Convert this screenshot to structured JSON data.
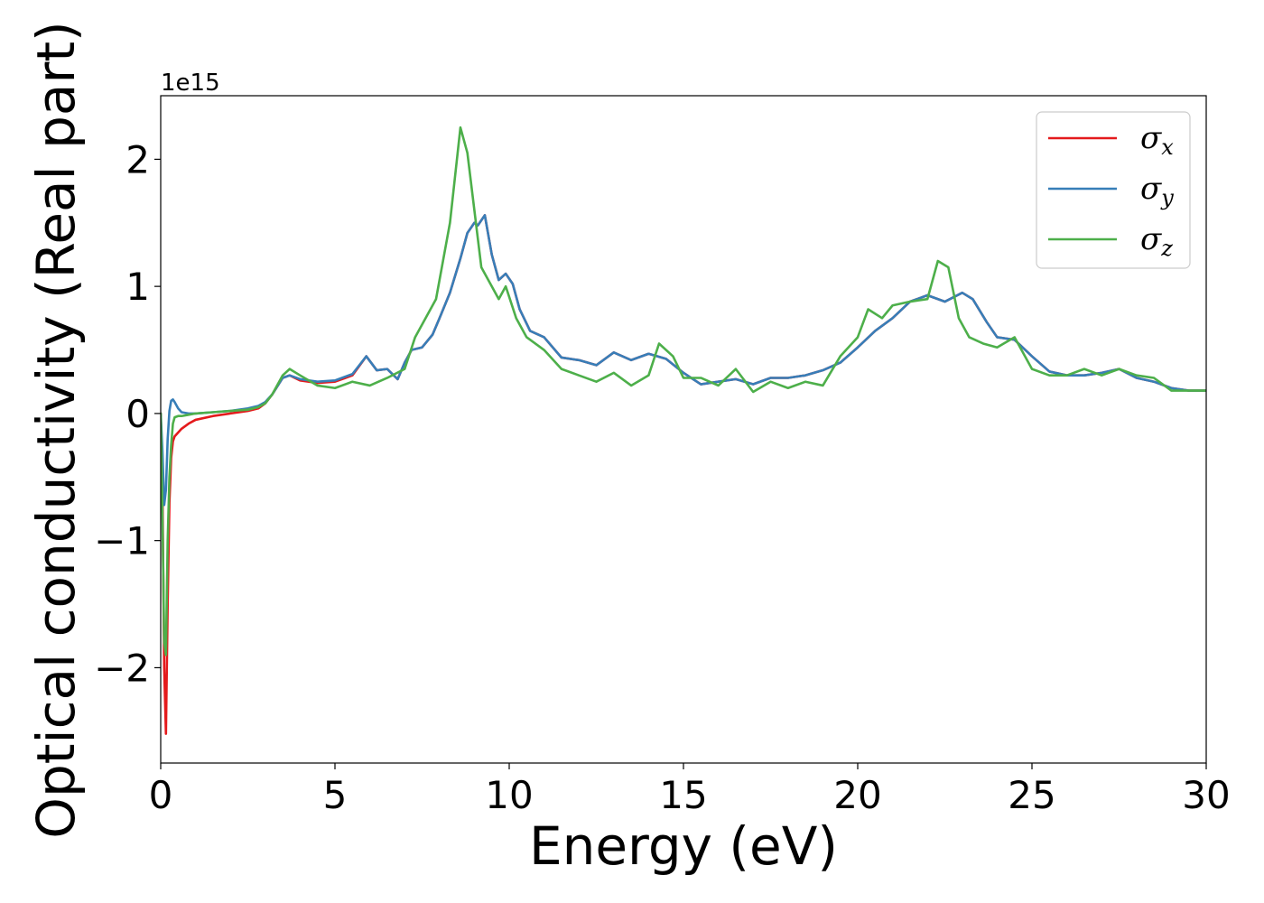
{
  "chart_data": {
    "type": "line",
    "title": "",
    "xlabel": "Energy (eV)",
    "ylabel": "Optical conductivity (Real part)",
    "y_offset_label": "1e15",
    "xlim": [
      0,
      30
    ],
    "ylim": [
      -2.75,
      2.5
    ],
    "y_scale_factor": 1000000000000000.0,
    "x_ticks": [
      0,
      5,
      10,
      15,
      20,
      25,
      30
    ],
    "x_tick_labels": [
      "0",
      "5",
      "10",
      "15",
      "20",
      "25",
      "30"
    ],
    "y_ticks": [
      -2,
      -1,
      0,
      1,
      2
    ],
    "y_tick_labels": [
      "−2",
      "−1",
      "0",
      "1",
      "2"
    ],
    "grid": false,
    "legend_position": "top-right",
    "colors": {
      "sigma_x": "#e41a1c",
      "sigma_y": "#377eb8",
      "sigma_z": "#4daf4a"
    },
    "legend": [
      {
        "symbol": "σ",
        "sub": "x",
        "key": "sigma_x"
      },
      {
        "symbol": "σ",
        "sub": "y",
        "key": "sigma_y"
      },
      {
        "symbol": "σ",
        "sub": "z",
        "key": "sigma_z"
      }
    ],
    "series": [
      {
        "key": "sigma_x",
        "x": [
          0.0,
          0.05,
          0.1,
          0.15,
          0.2,
          0.25,
          0.3,
          0.35,
          0.4,
          0.5,
          0.6,
          0.8,
          1.0,
          1.5,
          2.0,
          2.5,
          2.8,
          3.0,
          3.2,
          3.5,
          3.7,
          4.0,
          4.5,
          5.0,
          5.5,
          5.9,
          6.2,
          6.5,
          6.8,
          7.0,
          7.2,
          7.5,
          7.8,
          8.0,
          8.3,
          8.6,
          8.8,
          9.0,
          9.1,
          9.3,
          9.5,
          9.7,
          9.9,
          10.1,
          10.3,
          10.6,
          11.0,
          11.5,
          12.0,
          12.5,
          13.0,
          13.5,
          14.0,
          14.5,
          15.0,
          15.5,
          16.0,
          16.5,
          17.0,
          17.5,
          18.0,
          18.5,
          19.0,
          19.5,
          20.0,
          20.5,
          21.0,
          21.5,
          22.0,
          22.5,
          23.0,
          23.3,
          23.7,
          24.0,
          24.5,
          25.0,
          25.5,
          26.0,
          26.5,
          27.0,
          27.5,
          28.0,
          28.5,
          29.0,
          29.5,
          30.0
        ],
        "y": [
          0.0,
          -0.6,
          -2.0,
          -2.52,
          -1.5,
          -0.7,
          -0.35,
          -0.22,
          -0.18,
          -0.15,
          -0.12,
          -0.08,
          -0.05,
          -0.02,
          0.0,
          0.02,
          0.04,
          0.08,
          0.15,
          0.28,
          0.3,
          0.26,
          0.24,
          0.25,
          0.3,
          0.45,
          0.34,
          0.35,
          0.27,
          0.4,
          0.5,
          0.52,
          0.62,
          0.75,
          0.95,
          1.22,
          1.42,
          1.5,
          1.48,
          1.56,
          1.25,
          1.05,
          1.1,
          1.02,
          0.82,
          0.65,
          0.6,
          0.44,
          0.42,
          0.38,
          0.48,
          0.42,
          0.47,
          0.43,
          0.32,
          0.23,
          0.25,
          0.27,
          0.23,
          0.28,
          0.28,
          0.3,
          0.34,
          0.4,
          0.52,
          0.65,
          0.75,
          0.88,
          0.93,
          0.88,
          0.95,
          0.9,
          0.72,
          0.6,
          0.58,
          0.45,
          0.33,
          0.3,
          0.3,
          0.32,
          0.35,
          0.28,
          0.25,
          0.2,
          0.18,
          0.18
        ]
      },
      {
        "key": "sigma_y",
        "x": [
          0.0,
          0.05,
          0.1,
          0.15,
          0.2,
          0.25,
          0.3,
          0.35,
          0.4,
          0.5,
          0.6,
          0.8,
          1.0,
          1.5,
          2.0,
          2.5,
          2.8,
          3.0,
          3.2,
          3.5,
          3.7,
          4.0,
          4.5,
          5.0,
          5.5,
          5.9,
          6.2,
          6.5,
          6.8,
          7.0,
          7.2,
          7.5,
          7.8,
          8.0,
          8.3,
          8.6,
          8.8,
          9.0,
          9.1,
          9.3,
          9.5,
          9.7,
          9.9,
          10.1,
          10.3,
          10.6,
          11.0,
          11.5,
          12.0,
          12.5,
          13.0,
          13.5,
          14.0,
          14.5,
          15.0,
          15.5,
          16.0,
          16.5,
          17.0,
          17.5,
          18.0,
          18.5,
          19.0,
          19.5,
          20.0,
          20.5,
          21.0,
          21.5,
          22.0,
          22.5,
          23.0,
          23.3,
          23.7,
          24.0,
          24.5,
          25.0,
          25.5,
          26.0,
          26.5,
          27.0,
          27.5,
          28.0,
          28.5,
          29.0,
          29.5,
          30.0
        ],
        "y": [
          0.0,
          -0.3,
          -0.72,
          -0.6,
          -0.2,
          0.02,
          0.1,
          0.11,
          0.09,
          0.04,
          0.01,
          0.0,
          0.0,
          0.01,
          0.02,
          0.04,
          0.06,
          0.09,
          0.15,
          0.28,
          0.3,
          0.27,
          0.25,
          0.26,
          0.31,
          0.45,
          0.34,
          0.35,
          0.27,
          0.4,
          0.5,
          0.52,
          0.62,
          0.75,
          0.95,
          1.22,
          1.42,
          1.5,
          1.48,
          1.56,
          1.25,
          1.05,
          1.1,
          1.02,
          0.82,
          0.65,
          0.6,
          0.44,
          0.42,
          0.38,
          0.48,
          0.42,
          0.47,
          0.43,
          0.32,
          0.23,
          0.25,
          0.27,
          0.23,
          0.28,
          0.28,
          0.3,
          0.34,
          0.4,
          0.52,
          0.65,
          0.75,
          0.88,
          0.93,
          0.88,
          0.95,
          0.9,
          0.72,
          0.6,
          0.58,
          0.45,
          0.33,
          0.3,
          0.3,
          0.32,
          0.35,
          0.28,
          0.25,
          0.2,
          0.18,
          0.18
        ]
      },
      {
        "key": "sigma_z",
        "x": [
          0.0,
          0.05,
          0.1,
          0.15,
          0.2,
          0.25,
          0.3,
          0.35,
          0.4,
          0.5,
          0.6,
          0.8,
          1.0,
          1.5,
          2.0,
          2.5,
          2.8,
          3.0,
          3.2,
          3.5,
          3.7,
          4.0,
          4.5,
          5.0,
          5.5,
          6.0,
          6.5,
          7.0,
          7.3,
          7.6,
          7.9,
          8.1,
          8.3,
          8.5,
          8.6,
          8.8,
          9.0,
          9.2,
          9.5,
          9.7,
          9.9,
          10.2,
          10.5,
          11.0,
          11.5,
          12.0,
          12.5,
          13.0,
          13.5,
          14.0,
          14.3,
          14.7,
          15.0,
          15.5,
          16.0,
          16.5,
          17.0,
          17.5,
          18.0,
          18.5,
          19.0,
          19.5,
          20.0,
          20.3,
          20.7,
          21.0,
          21.5,
          22.0,
          22.3,
          22.6,
          22.9,
          23.2,
          23.6,
          24.0,
          24.5,
          25.0,
          25.5,
          26.0,
          26.5,
          27.0,
          27.5,
          28.0,
          28.5,
          29.0,
          29.5,
          30.0
        ],
        "y": [
          0.0,
          -0.8,
          -1.8,
          -1.9,
          -1.0,
          -0.5,
          -0.25,
          -0.08,
          -0.03,
          -0.02,
          -0.02,
          -0.01,
          0.0,
          0.01,
          0.02,
          0.03,
          0.05,
          0.08,
          0.15,
          0.3,
          0.35,
          0.3,
          0.22,
          0.2,
          0.25,
          0.22,
          0.28,
          0.35,
          0.6,
          0.75,
          0.9,
          1.2,
          1.5,
          2.0,
          2.25,
          2.05,
          1.6,
          1.15,
          1.0,
          0.9,
          1.0,
          0.75,
          0.6,
          0.5,
          0.35,
          0.3,
          0.25,
          0.32,
          0.22,
          0.3,
          0.55,
          0.45,
          0.28,
          0.28,
          0.22,
          0.35,
          0.17,
          0.25,
          0.2,
          0.25,
          0.22,
          0.45,
          0.6,
          0.82,
          0.75,
          0.85,
          0.88,
          0.9,
          1.2,
          1.15,
          0.75,
          0.6,
          0.55,
          0.52,
          0.6,
          0.35,
          0.3,
          0.3,
          0.35,
          0.3,
          0.35,
          0.3,
          0.28,
          0.18,
          0.18,
          0.18
        ]
      }
    ]
  }
}
